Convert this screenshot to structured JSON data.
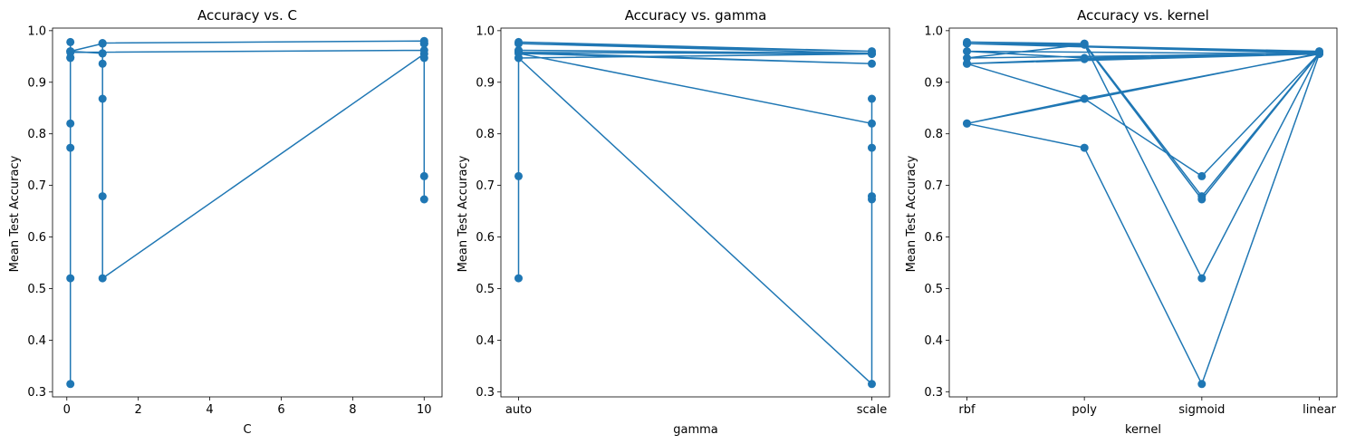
{
  "figure": {
    "color": "#1f77b4"
  },
  "chart_data": [
    {
      "type": "line",
      "title": "Accuracy vs. C",
      "xlabel": "C",
      "ylabel": "Mean Test Accuracy",
      "x_axis_kind": "numeric",
      "xlim": [
        -0.4,
        10.5
      ],
      "ylim": [
        0.29,
        1.005
      ],
      "xticks": [
        0,
        2,
        4,
        6,
        8,
        10
      ],
      "yticks": [
        0.3,
        0.4,
        0.5,
        0.6,
        0.7,
        0.8,
        0.9,
        1.0
      ],
      "grid": false,
      "x": [
        0.1,
        0.1,
        1,
        1,
        10,
        10,
        10,
        0.1,
        0.1,
        0.1,
        0.1,
        0.1,
        0.1,
        0.1,
        0.1,
        1,
        1,
        1,
        1,
        1,
        1,
        10,
        10,
        10,
        10,
        10
      ],
      "y": [
        0.978,
        0.96,
        0.956,
        0.976,
        0.98,
        0.975,
        0.962,
        0.958,
        0.947,
        0.82,
        0.773,
        0.52,
        0.315,
        0.948,
        0.96,
        0.975,
        0.956,
        0.936,
        0.868,
        0.679,
        0.52,
        0.955,
        0.947,
        0.718,
        0.673,
        0.975
      ]
    },
    {
      "type": "line",
      "title": "Accuracy vs. gamma",
      "xlabel": "gamma",
      "ylabel": "Mean Test Accuracy",
      "x_axis_kind": "categorical",
      "categories": [
        "auto",
        "scale"
      ],
      "ylim": [
        0.29,
        1.005
      ],
      "yticks": [
        0.3,
        0.4,
        0.5,
        0.6,
        0.7,
        0.8,
        0.9,
        1.0
      ],
      "grid": false,
      "x": [
        "auto",
        "scale",
        "auto",
        "scale",
        "auto",
        "scale",
        "auto",
        "scale",
        "auto",
        "scale",
        "scale",
        "scale",
        "scale",
        "scale",
        "scale",
        "auto",
        "auto",
        "auto",
        "auto",
        "auto",
        "scale"
      ],
      "y": [
        0.978,
        0.96,
        0.975,
        0.956,
        0.962,
        0.955,
        0.958,
        0.936,
        0.956,
        0.82,
        0.868,
        0.773,
        0.679,
        0.673,
        0.315,
        0.947,
        0.96,
        0.718,
        0.52,
        0.947,
        0.955
      ]
    },
    {
      "type": "line",
      "title": "Accuracy vs. kernel",
      "xlabel": "kernel",
      "ylabel": "Mean Test Accuracy",
      "x_axis_kind": "categorical",
      "categories": [
        "rbf",
        "poly",
        "sigmoid",
        "linear"
      ],
      "ylim": [
        0.29,
        1.005
      ],
      "yticks": [
        0.3,
        0.4,
        0.5,
        0.6,
        0.7,
        0.8,
        0.9,
        1.0
      ],
      "grid": false,
      "x": [
        "rbf",
        "poly",
        "sigmoid",
        "linear",
        "rbf",
        "poly",
        "sigmoid",
        "linear",
        "rbf",
        "poly",
        "sigmoid",
        "linear",
        "rbf",
        "poly",
        "sigmoid",
        "linear",
        "rbf",
        "poly",
        "sigmoid",
        "linear",
        "rbf",
        "poly",
        "linear",
        "rbf",
        "poly",
        "linear",
        "rbf",
        "poly",
        "linear",
        "rbf",
        "linear"
      ],
      "y": [
        0.978,
        0.975,
        0.679,
        0.956,
        0.975,
        0.973,
        0.673,
        0.956,
        0.947,
        0.973,
        0.52,
        0.958,
        0.936,
        0.868,
        0.718,
        0.956,
        0.82,
        0.773,
        0.315,
        0.955,
        0.96,
        0.947,
        0.956,
        0.82,
        0.868,
        0.955,
        0.936,
        0.945,
        0.958,
        0.975,
        0.96
      ]
    }
  ]
}
